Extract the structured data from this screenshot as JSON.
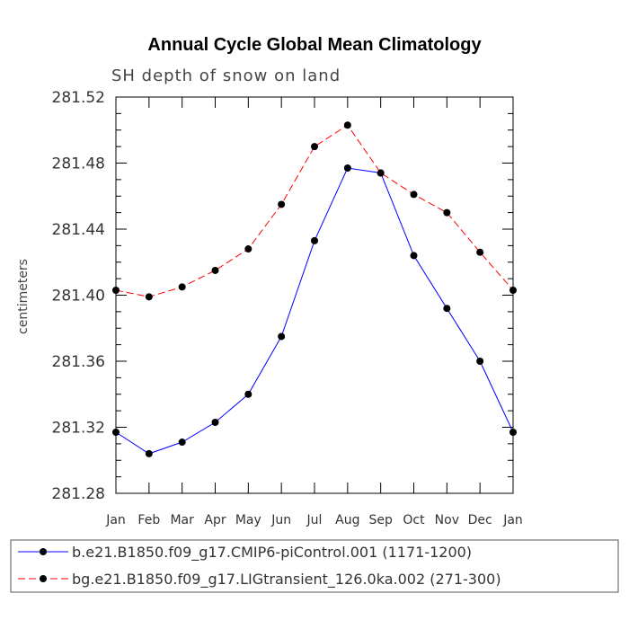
{
  "chart_data": {
    "type": "line",
    "title": "Annual Cycle Global Mean Climatology",
    "subtitle": "SH depth of snow on land",
    "xlabel": "",
    "ylabel": "centimeters",
    "categories": [
      "Jan",
      "Feb",
      "Mar",
      "Apr",
      "May",
      "Jun",
      "Jul",
      "Aug",
      "Sep",
      "Oct",
      "Nov",
      "Dec",
      "Jan"
    ],
    "ylim": [
      281.28,
      281.52
    ],
    "yticks": [
      "281.28",
      "281.32",
      "281.36",
      "281.40",
      "281.44",
      "281.48",
      "281.52"
    ],
    "legend_position": "bottom",
    "series": [
      {
        "name": "b.e21.B1850.f09_g17.CMIP6-piControl.001 (1171-1200)",
        "color": "#0000ff",
        "dash": "solid",
        "values": [
          281.317,
          281.304,
          281.311,
          281.323,
          281.34,
          281.375,
          281.433,
          281.477,
          281.474,
          281.424,
          281.392,
          281.36,
          281.317
        ]
      },
      {
        "name": "bg.e21.B1850.f09_g17.LIGtransient_126.0ka.002 (271-300)",
        "color": "#ff0000",
        "dash": "dashed",
        "values": [
          281.403,
          281.399,
          281.405,
          281.415,
          281.428,
          281.455,
          281.49,
          281.503,
          281.474,
          281.461,
          281.45,
          281.426,
          281.403
        ]
      }
    ]
  }
}
